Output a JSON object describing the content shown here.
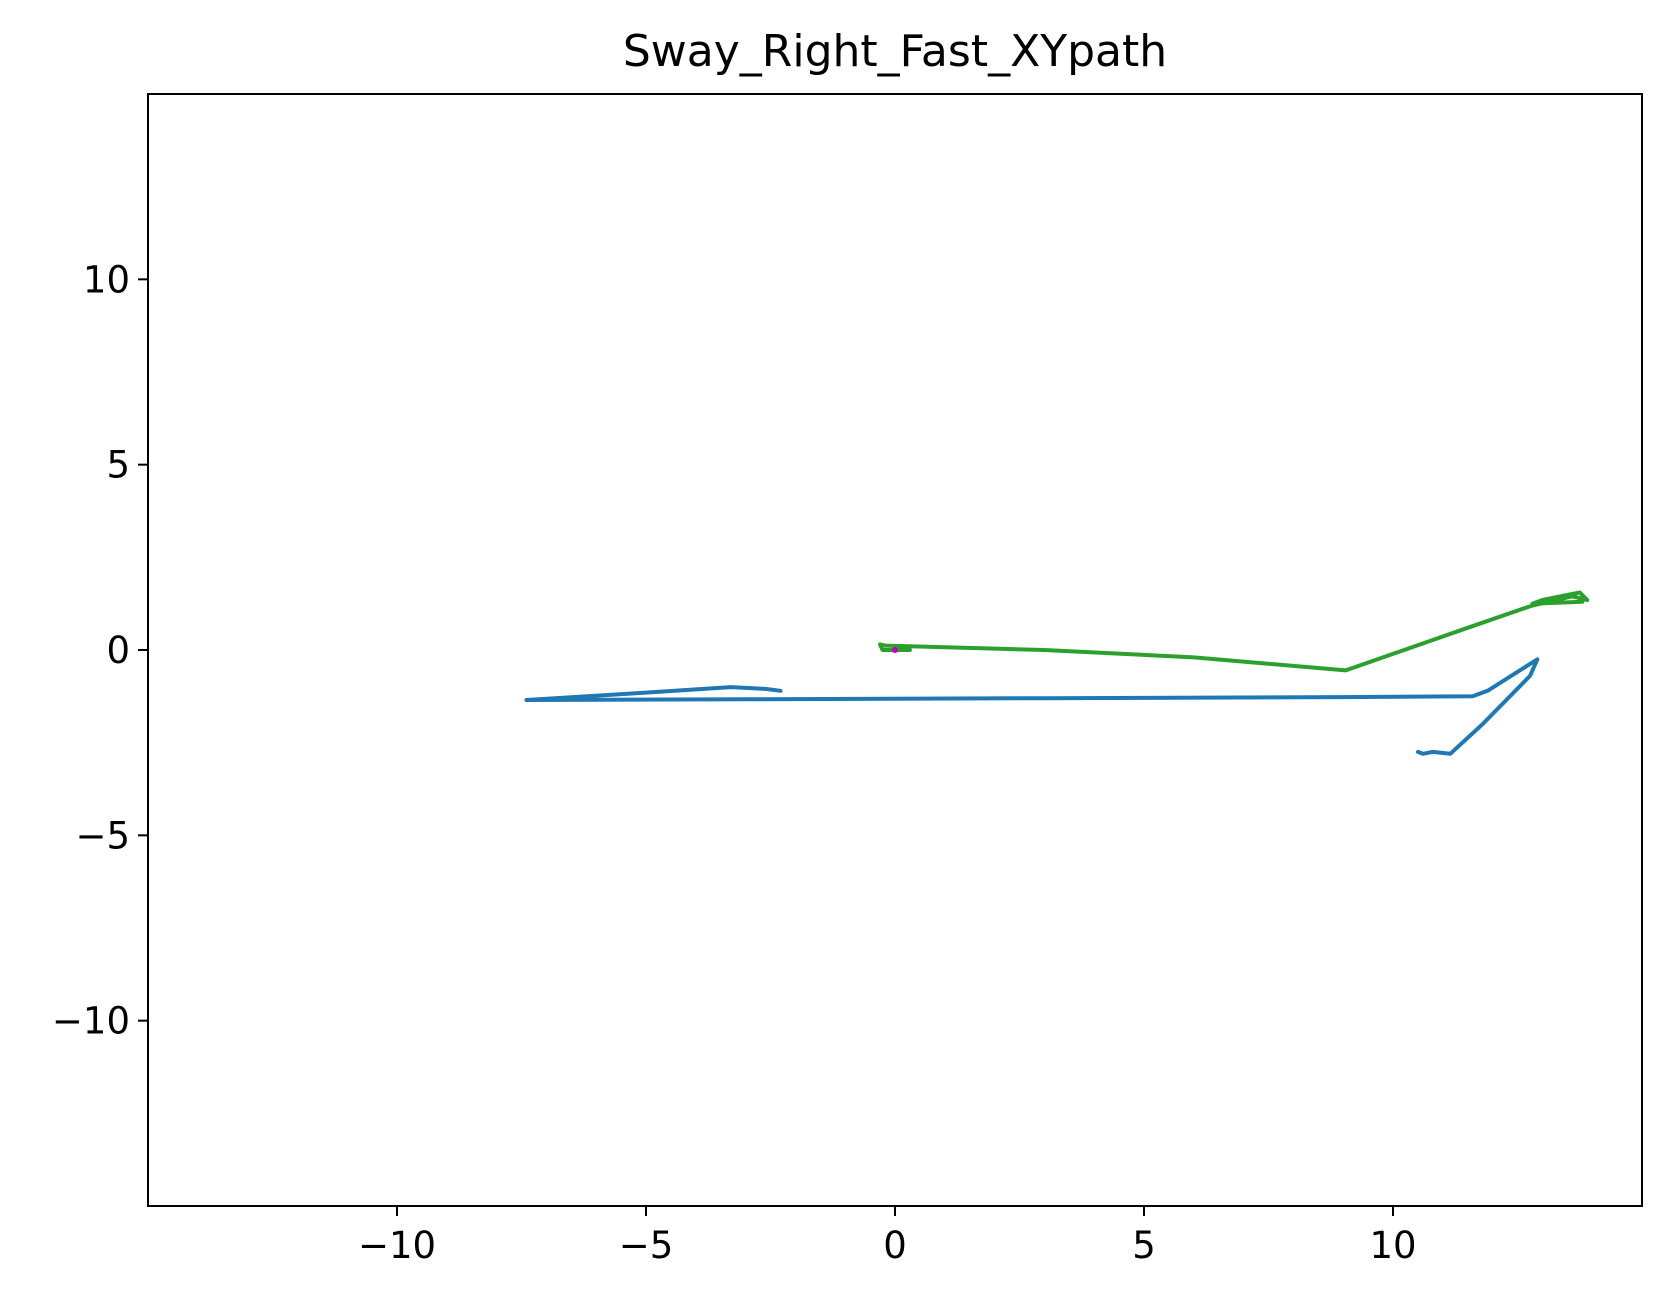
{
  "chart_data": {
    "type": "line",
    "title": "Sway_Right_Fast_XYpath",
    "xlabel": "",
    "ylabel": "",
    "xlim": [
      -15,
      15
    ],
    "ylim": [
      -15,
      15
    ],
    "grid": false,
    "xticks": [
      -10,
      -5,
      0,
      5,
      10
    ],
    "yticks": [
      -10,
      -5,
      0,
      5,
      10
    ],
    "xtick_labels": [
      "−10",
      "−5",
      "0",
      "5",
      "10"
    ],
    "ytick_labels": [
      "−10",
      "−5",
      "0",
      "5",
      "10"
    ],
    "series": [
      {
        "color": "#1f77b4",
        "points": [
          [
            -2.3,
            -1.1
          ],
          [
            -2.6,
            -1.05
          ],
          [
            -3.3,
            -1.0
          ],
          [
            -5.0,
            -1.15
          ],
          [
            -7.4,
            -1.35
          ],
          [
            -3.0,
            -1.33
          ],
          [
            3.0,
            -1.3
          ],
          [
            9.0,
            -1.27
          ],
          [
            11.6,
            -1.25
          ],
          [
            11.9,
            -1.1
          ],
          [
            12.9,
            -0.25
          ],
          [
            12.75,
            -0.7
          ],
          [
            11.8,
            -2.0
          ],
          [
            11.15,
            -2.8
          ],
          [
            10.8,
            -2.75
          ],
          [
            10.6,
            -2.8
          ],
          [
            10.5,
            -2.75
          ]
        ]
      },
      {
        "color": "#2ca02c",
        "points": [
          [
            0.3,
            0.0
          ],
          [
            -0.25,
            0.0
          ],
          [
            -0.3,
            0.15
          ],
          [
            -0.2,
            0.12
          ],
          [
            0.3,
            0.1
          ],
          [
            3.0,
            0.0
          ],
          [
            6.0,
            -0.2
          ],
          [
            9.05,
            -0.55
          ],
          [
            11.5,
            0.6
          ],
          [
            12.8,
            1.2
          ],
          [
            13.6,
            1.45
          ],
          [
            13.9,
            1.35
          ],
          [
            13.75,
            1.55
          ],
          [
            13.0,
            1.35
          ],
          [
            12.8,
            1.25
          ],
          [
            13.8,
            1.3
          ]
        ]
      },
      {
        "color": "#c200c2",
        "points": [
          [
            0.0,
            0.0
          ]
        ]
      }
    ]
  }
}
